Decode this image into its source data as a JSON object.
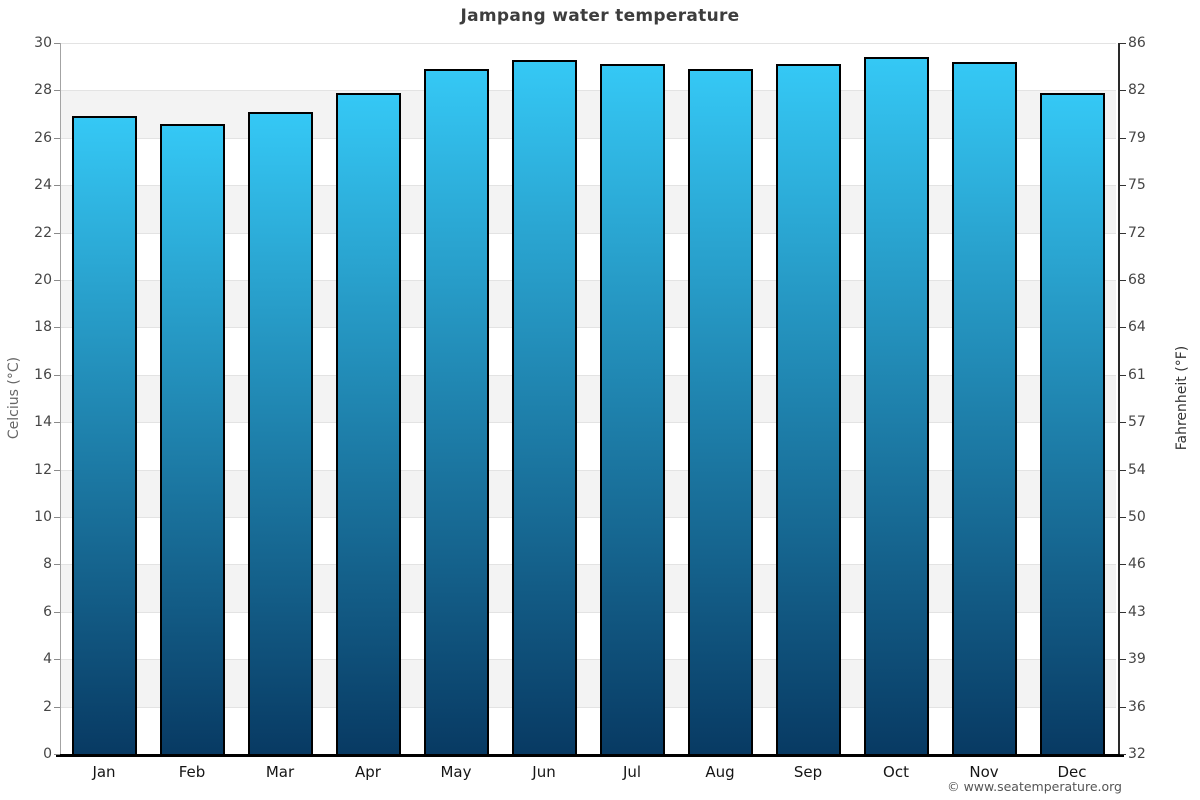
{
  "title": "Jampang water temperature",
  "footer_credit": "© www.seatemperature.org",
  "chart_data": {
    "type": "bar",
    "title": "Jampang water temperature",
    "categories": [
      "Jan",
      "Feb",
      "Mar",
      "Apr",
      "May",
      "Jun",
      "Jul",
      "Aug",
      "Sep",
      "Oct",
      "Nov",
      "Dec"
    ],
    "values": [
      26.9,
      26.6,
      27.1,
      27.9,
      28.9,
      29.3,
      29.1,
      28.9,
      29.1,
      29.4,
      29.2,
      27.9
    ],
    "xlabel": "",
    "ylabel_left": "Celcius (°C)",
    "ylabel_right": "Fahrenheit (°F)",
    "ylim": [
      0,
      30
    ],
    "yticks_celsius": [
      0,
      2,
      4,
      6,
      8,
      10,
      12,
      14,
      16,
      18,
      20,
      22,
      24,
      26,
      28,
      30
    ],
    "yticks_fahrenheit": [
      32,
      36,
      39,
      43,
      46,
      50,
      54,
      57,
      61,
      64,
      68,
      72,
      75,
      79,
      82,
      86
    ],
    "grid": "horizontal alternating bands, light gridlines every 2°C",
    "legend": "none",
    "colors": {
      "bar_gradient_top": "#35c8f5",
      "bar_gradient_bottom": "#083a63",
      "bar_border": "#000000",
      "band_gray": "#f3f3f3",
      "band_white": "#ffffff",
      "gridline": "#e3e3e3",
      "title_text": "#3d3d3d"
    }
  }
}
